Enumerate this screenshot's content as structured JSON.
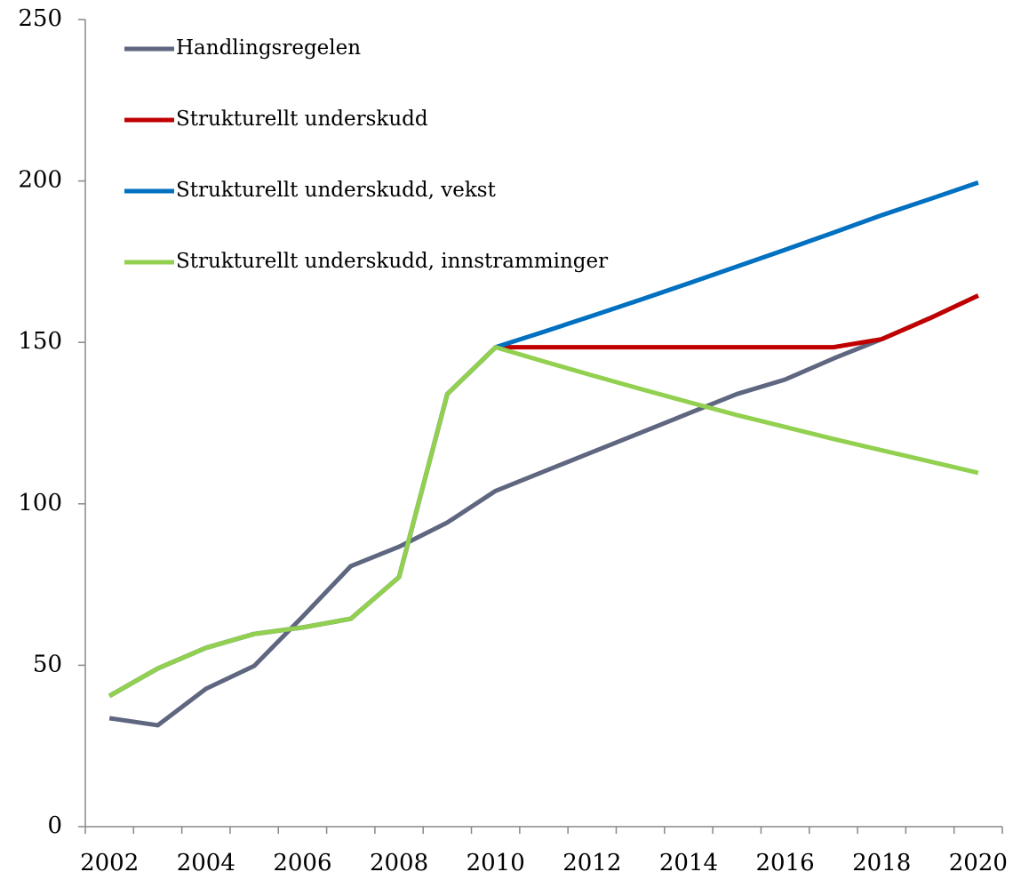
{
  "chart_data": {
    "type": "line",
    "categories": [
      "2002",
      null,
      "2004",
      null,
      "2006",
      null,
      "2008",
      null,
      "2010",
      null,
      "2012",
      null,
      "2014",
      null,
      "2016",
      null,
      "2018",
      null,
      "2020"
    ],
    "series": [
      {
        "name": "Handlingsregelen",
        "color": "#5f6680",
        "values": [
          33.6,
          31.4,
          42.7,
          49.8,
          65,
          80.7,
          86.7,
          94.2,
          104,
          110,
          116,
          122,
          128,
          134,
          138.5,
          145,
          151,
          157.5,
          164.5
        ]
      },
      {
        "name": "Strukturellt underskudd",
        "color": "#c00000",
        "values": [
          40.5,
          49,
          55.4,
          59.7,
          61.7,
          64.4,
          77.3,
          134,
          148.5,
          148.5,
          148.5,
          148.5,
          148.5,
          148.5,
          148.5,
          148.5,
          151,
          157.5,
          164.5
        ]
      },
      {
        "name": "Strukturellt underskudd, vekst",
        "color": "#0070c0",
        "values": [
          40.5,
          49,
          55.4,
          59.7,
          61.7,
          64.4,
          77.3,
          134,
          148.5,
          153.3,
          158.2,
          163.2,
          168.3,
          173.5,
          178.7,
          184,
          189.4,
          194.4,
          199.5
        ]
      },
      {
        "name": "Strukturellt underskudd, innstramminger",
        "color": "#92d050",
        "values": [
          40.5,
          49,
          55.4,
          59.7,
          61.7,
          64.4,
          77.3,
          134,
          148.5,
          144.1,
          139.8,
          135.6,
          131.5,
          127.5,
          123.8,
          120.1,
          116.6,
          113.1,
          109.6
        ]
      }
    ],
    "ylim": [
      0,
      250
    ],
    "yticks": [
      0,
      50,
      100,
      150,
      200,
      250
    ],
    "grid": false,
    "legend": "upper left"
  }
}
